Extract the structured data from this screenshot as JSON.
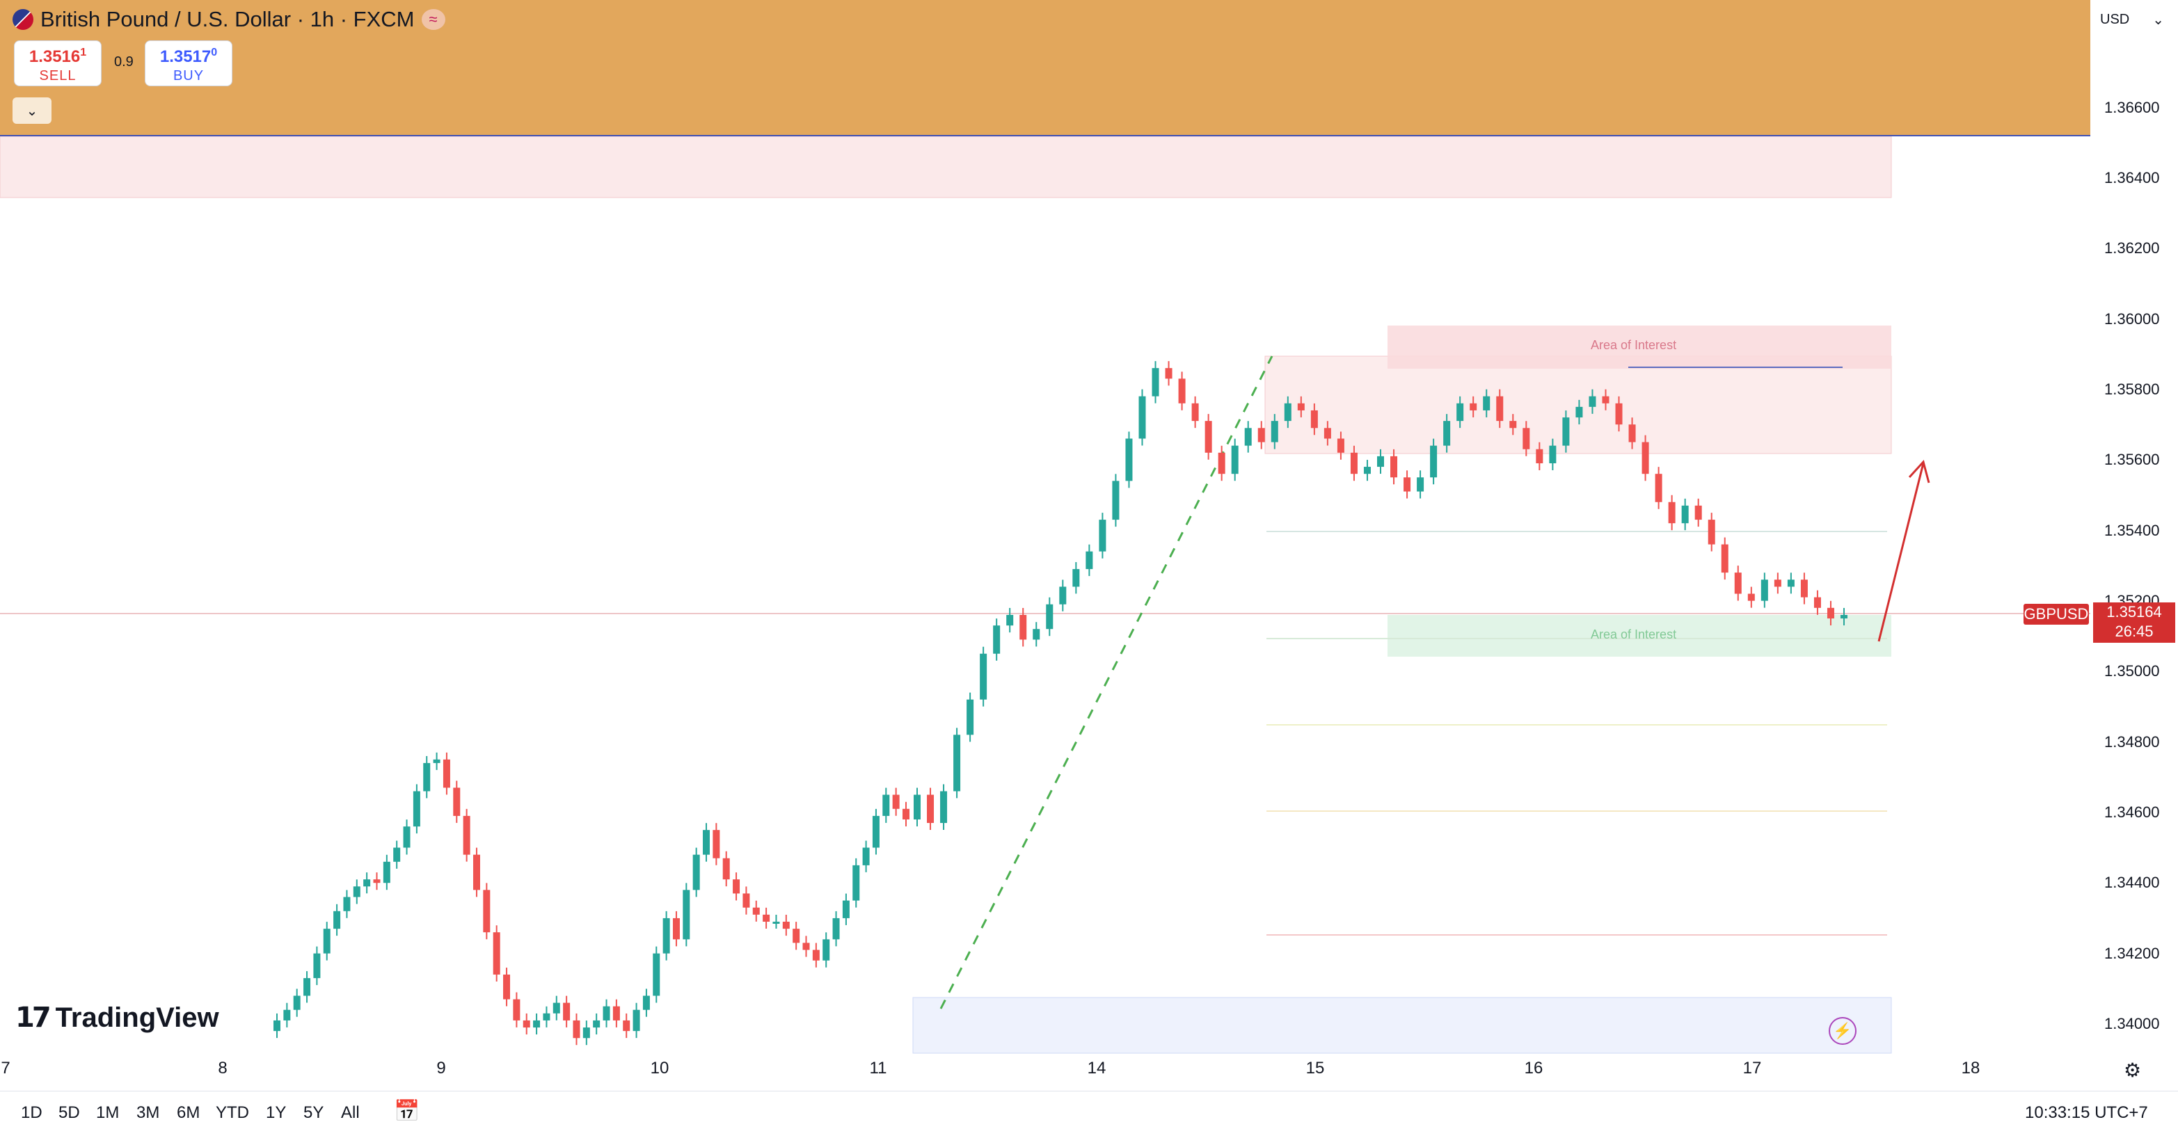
{
  "header": {
    "title": "British Pound / U.S. Dollar · 1h · FXCM",
    "sell_price_main": "1.3516",
    "sell_price_sup": "1",
    "sell_label": "SELL",
    "spread": "0.9",
    "buy_price_main": "1.3517",
    "buy_price_sup": "0",
    "buy_label": "BUY",
    "collapse_icon": "chevron-down-icon",
    "live_icon": "wave-icon"
  },
  "price_axis": {
    "currency": "USD",
    "labels": [
      "1.36600",
      "1.36400",
      "1.36200",
      "1.36000",
      "1.35800",
      "1.35600",
      "1.35400",
      "1.35200",
      "1.35000",
      "1.34800",
      "1.34600",
      "1.34400",
      "1.34200",
      "1.34000"
    ],
    "symbol_tag": "GBPUSD",
    "last_price": "1.35164",
    "countdown": "26:45"
  },
  "annotations": {
    "aoi_top": "Area of Interest",
    "aoi_bottom": "Area of Interest"
  },
  "time_axis": {
    "labels": [
      "7",
      "8",
      "9",
      "10",
      "11",
      "14",
      "15",
      "16",
      "17",
      "18"
    ]
  },
  "bottom_bar": {
    "ranges": [
      "1D",
      "5D",
      "1M",
      "3M",
      "6M",
      "YTD",
      "1Y",
      "5Y",
      "All"
    ],
    "clock": "10:33:15 UTC+7",
    "calendar_icon": "calendar-range-icon",
    "settings_icon": "gear-icon"
  },
  "branding": {
    "logo": "TradingView"
  },
  "colors": {
    "up": "#26a69a",
    "down": "#ef5350",
    "header_bg": "#e2a75c",
    "price_tag": "#d32f2f"
  },
  "chart_data": {
    "type": "candlestick",
    "symbol": "GBPUSD",
    "timeframe": "1h",
    "y_range": [
      1.3394,
      1.3672
    ],
    "x_labels": [
      "7",
      "8",
      "9",
      "10",
      "11",
      "14",
      "15",
      "16",
      "17",
      "18"
    ],
    "last_price": 1.35164,
    "zones": [
      {
        "label": "Area of Interest",
        "from": 1.3588,
        "to": 1.36,
        "kind": "resistance"
      },
      {
        "label": "Area of Interest",
        "from": 1.3504,
        "to": 1.3516,
        "kind": "support"
      }
    ],
    "closes": [
      1.3401,
      1.3404,
      1.3408,
      1.3413,
      1.342,
      1.3427,
      1.3432,
      1.3436,
      1.3439,
      1.3441,
      1.344,
      1.3446,
      1.345,
      1.3456,
      1.3466,
      1.3474,
      1.3475,
      1.3467,
      1.3459,
      1.3448,
      1.3438,
      1.3426,
      1.3414,
      1.3407,
      1.3401,
      1.3399,
      1.3401,
      1.3403,
      1.3406,
      1.3401,
      1.3396,
      1.3399,
      1.3401,
      1.3405,
      1.3401,
      1.3398,
      1.3404,
      1.3408,
      1.342,
      1.343,
      1.3424,
      1.3438,
      1.3448,
      1.3455,
      1.3447,
      1.3441,
      1.3437,
      1.3433,
      1.3431,
      1.3429,
      1.3429,
      1.3427,
      1.3423,
      1.3421,
      1.3418,
      1.3424,
      1.343,
      1.3435,
      1.3445,
      1.345,
      1.3459,
      1.3465,
      1.3461,
      1.3458,
      1.3465,
      1.3457,
      1.3466,
      1.3482,
      1.3492,
      1.3505,
      1.3513,
      1.3516,
      1.3509,
      1.3512,
      1.3519,
      1.3524,
      1.3529,
      1.3534,
      1.3543,
      1.3554,
      1.3566,
      1.3578,
      1.3586,
      1.3583,
      1.3576,
      1.3571,
      1.3562,
      1.3556,
      1.3564,
      1.3569,
      1.3565,
      1.3571,
      1.3576,
      1.3574,
      1.3569,
      1.3566,
      1.3562,
      1.3556,
      1.3558,
      1.3561,
      1.3555,
      1.3551,
      1.3555,
      1.3564,
      1.3571,
      1.3576,
      1.3574,
      1.3578,
      1.3571,
      1.3569,
      1.3563,
      1.3559,
      1.3564,
      1.3572,
      1.3575,
      1.3578,
      1.3576,
      1.357,
      1.3565,
      1.3556,
      1.3548,
      1.3542,
      1.3547,
      1.3543,
      1.3536,
      1.3528,
      1.3522,
      1.352,
      1.3526,
      1.3524,
      1.3526,
      1.3521,
      1.3518,
      1.3515,
      1.3516
    ]
  }
}
